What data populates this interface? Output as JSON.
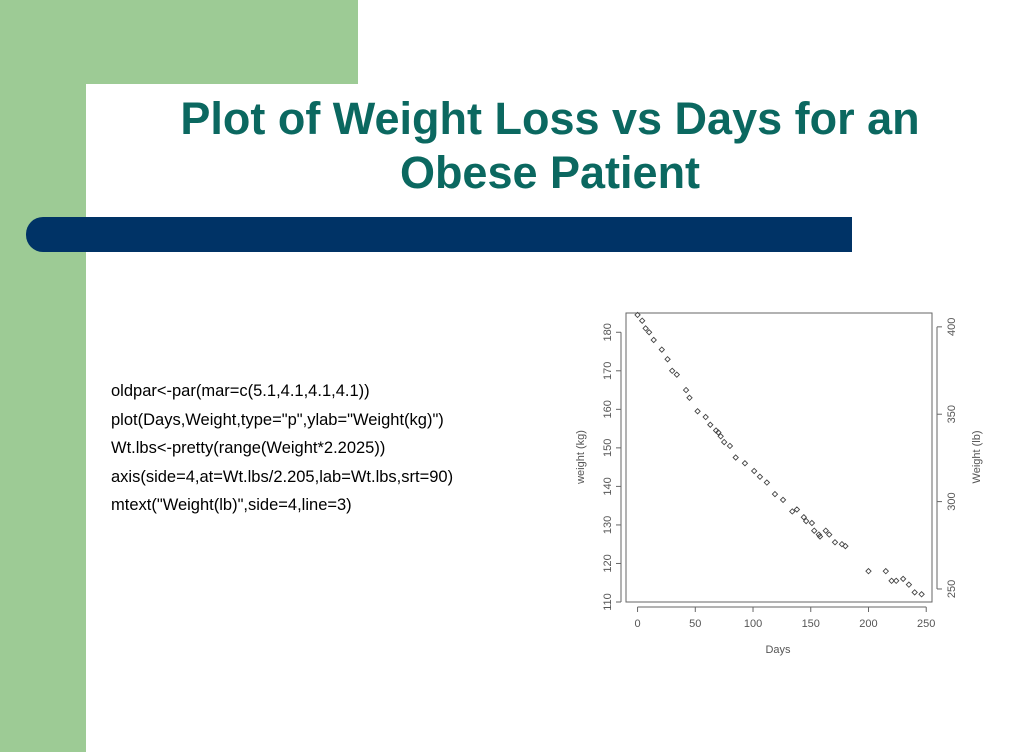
{
  "slide": {
    "title_line1": "Plot of Weight Loss vs Days for an",
    "title_line2": "Obese Patient",
    "colors": {
      "green": "#9dcb95",
      "navy": "#003366",
      "title": "#0b6860"
    }
  },
  "code": [
    "oldpar<-par(mar=c(5.1,4.1,4.1,4.1))",
    "plot(Days,Weight,type=\"p\",ylab=\"Weight(kg)\")",
    "Wt.lbs<-pretty(range(Weight*2.2025))",
    "axis(side=4,at=Wt.lbs/2.205,lab=Wt.lbs,srt=90)",
    "mtext(\"Weight(lb)\",side=4,line=3)"
  ],
  "chart_data": {
    "type": "scatter",
    "xlabel": "Days",
    "ylabel": "weight (kg)",
    "ylabel_right": "Weight (lb)",
    "xlim": [
      -10,
      255
    ],
    "ylim": [
      110,
      185
    ],
    "x_ticks": [
      0,
      50,
      100,
      150,
      200,
      250
    ],
    "y_ticks": [
      110,
      120,
      130,
      140,
      150,
      160,
      170,
      180
    ],
    "y_ticks_right_lb": [
      250,
      300,
      350,
      400
    ],
    "grid": false,
    "x": [
      0,
      4,
      7,
      10,
      14,
      21,
      26,
      30,
      34,
      42,
      45,
      52,
      59,
      63,
      68,
      70,
      72,
      75,
      80,
      85,
      93,
      101,
      106,
      112,
      119,
      126,
      134,
      138,
      144,
      146,
      151,
      153,
      157,
      158,
      163,
      166,
      171,
      177,
      180,
      200,
      215,
      220,
      224,
      230,
      235,
      240,
      246
    ],
    "y": [
      184.5,
      183,
      181,
      180,
      178,
      175.5,
      173,
      170,
      169,
      165,
      163,
      159.5,
      158,
      156,
      154.5,
      154,
      153,
      151.5,
      150.5,
      147.5,
      146,
      144,
      142.5,
      141,
      138,
      136.5,
      133.5,
      134,
      132,
      131,
      130.5,
      128.5,
      127.5,
      127,
      128.5,
      127.5,
      125.5,
      125,
      124.5,
      118,
      118,
      115.5,
      115.5,
      116,
      114.5,
      112.5,
      112
    ]
  }
}
